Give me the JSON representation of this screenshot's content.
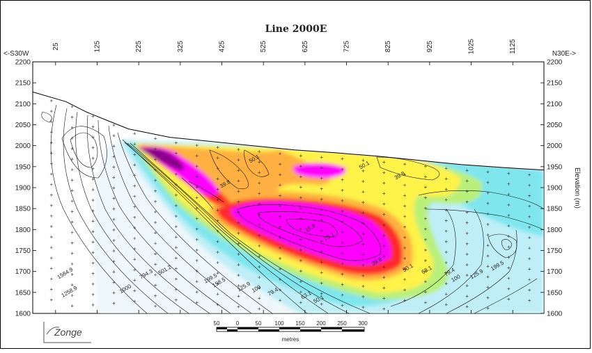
{
  "chart_data": {
    "type": "heatmap",
    "title": "Line 2000E",
    "left_direction": "<-S30W",
    "right_direction": "N30E->",
    "ylabel": "Elevation (m)",
    "x_ticks": [
      25,
      125,
      225,
      325,
      425,
      525,
      625,
      725,
      825,
      925,
      1025,
      1125
    ],
    "xlim": [
      -30,
      1200
    ],
    "y_ticks": [
      2200,
      2150,
      2100,
      2050,
      2000,
      1950,
      1900,
      1850,
      1800,
      1750,
      1700,
      1650,
      1600
    ],
    "ylim": [
      1600,
      2200
    ],
    "grid": false,
    "topography": {
      "x": [
        -30,
        50,
        100,
        150,
        200,
        300,
        400,
        500,
        600,
        700,
        800,
        900,
        1000,
        1100,
        1200
      ],
      "y": [
        2128,
        2105,
        2080,
        2060,
        2040,
        2020,
        2010,
        2000,
        1990,
        1983,
        1975,
        1965,
        1955,
        1948,
        1942
      ]
    },
    "contour_labels": [
      {
        "text": "1584.9",
        "x": 50,
        "y": 1692
      },
      {
        "text": "1258.9",
        "x": 60,
        "y": 1648
      },
      {
        "text": "1000",
        "x": 195,
        "y": 1655
      },
      {
        "text": "794.3",
        "x": 245,
        "y": 1690
      },
      {
        "text": "501.2",
        "x": 290,
        "y": 1700
      },
      {
        "text": "199.5",
        "x": 400,
        "y": 1680
      },
      {
        "text": "158.5",
        "x": 420,
        "y": 1670
      },
      {
        "text": "125.9",
        "x": 480,
        "y": 1660
      },
      {
        "text": "100",
        "x": 510,
        "y": 1655
      },
      {
        "text": "79.4",
        "x": 550,
        "y": 1648
      },
      {
        "text": "63.1",
        "x": 630,
        "y": 1640
      },
      {
        "text": "50.1",
        "x": 660,
        "y": 1630
      },
      {
        "text": "39.8",
        "x": 435,
        "y": 1905
      },
      {
        "text": "50.1",
        "x": 505,
        "y": 1965
      },
      {
        "text": "50.1",
        "x": 770,
        "y": 1950
      },
      {
        "text": "39.8",
        "x": 855,
        "y": 1925
      },
      {
        "text": "15.8",
        "x": 640,
        "y": 1800
      },
      {
        "text": "25.1",
        "x": 685,
        "y": 1780
      },
      {
        "text": "39.8",
        "x": 800,
        "y": 1720
      },
      {
        "text": "50.1",
        "x": 875,
        "y": 1705
      },
      {
        "text": "63.1",
        "x": 920,
        "y": 1700
      },
      {
        "text": "79.4",
        "x": 975,
        "y": 1695
      },
      {
        "text": "100",
        "x": 990,
        "y": 1680
      },
      {
        "text": "125.9",
        "x": 1040,
        "y": 1690
      },
      {
        "text": "199.5",
        "x": 1090,
        "y": 1710
      }
    ],
    "scale_bar": {
      "labels": [
        "50",
        "0",
        "50",
        "100",
        "150",
        "200",
        "250",
        "300"
      ],
      "unit": "metres"
    },
    "logo": "Zonge"
  }
}
